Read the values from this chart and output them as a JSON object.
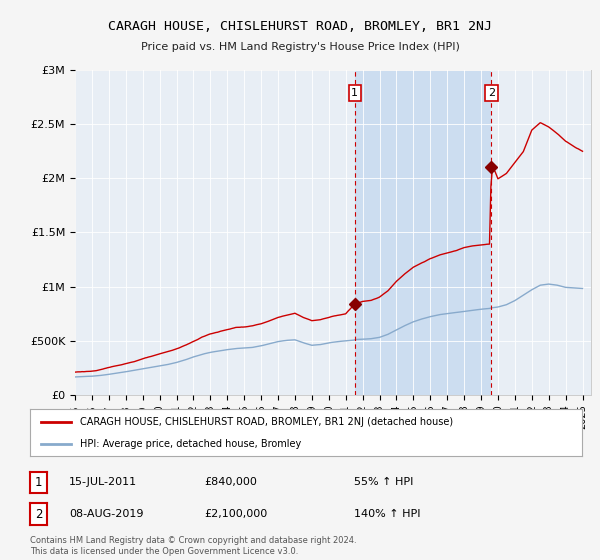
{
  "title": "CARAGH HOUSE, CHISLEHURST ROAD, BROMLEY, BR1 2NJ",
  "subtitle": "Price paid vs. HM Land Registry's House Price Index (HPI)",
  "background_color": "#f5f5f5",
  "plot_bg_color": "#e8eef5",
  "plot_bg_highlight": "#dce8f5",
  "sale1_date": "15-JUL-2011",
  "sale1_price": 840000,
  "sale1_pct": "55%",
  "sale2_date": "08-AUG-2019",
  "sale2_price": 2100000,
  "sale2_pct": "140%",
  "legend_label1": "CARAGH HOUSE, CHISLEHURST ROAD, BROMLEY, BR1 2NJ (detached house)",
  "legend_label2": "HPI: Average price, detached house, Bromley",
  "copyright": "Contains HM Land Registry data © Crown copyright and database right 2024.\nThis data is licensed under the Open Government Licence v3.0.",
  "xmin": 1995.0,
  "xmax": 2025.5,
  "ymin": 0,
  "ymax": 3000000,
  "yticks": [
    0,
    500000,
    1000000,
    1500000,
    2000000,
    2500000,
    3000000
  ],
  "ytick_labels": [
    "£0",
    "£500K",
    "£1M",
    "£1.5M",
    "£2M",
    "£2.5M",
    "£3M"
  ],
  "xticks": [
    1995,
    1996,
    1997,
    1998,
    1999,
    2000,
    2001,
    2002,
    2003,
    2004,
    2005,
    2006,
    2007,
    2008,
    2009,
    2010,
    2011,
    2012,
    2013,
    2014,
    2015,
    2016,
    2017,
    2018,
    2019,
    2020,
    2021,
    2022,
    2023,
    2024,
    2025
  ],
  "house_color": "#cc0000",
  "hpi_color": "#88aacc",
  "sale1_x": 2011.54,
  "sale2_x": 2019.61,
  "marker_color": "#880000",
  "dashed_color": "#cc0000",
  "highlight_color": "#ccddf0"
}
